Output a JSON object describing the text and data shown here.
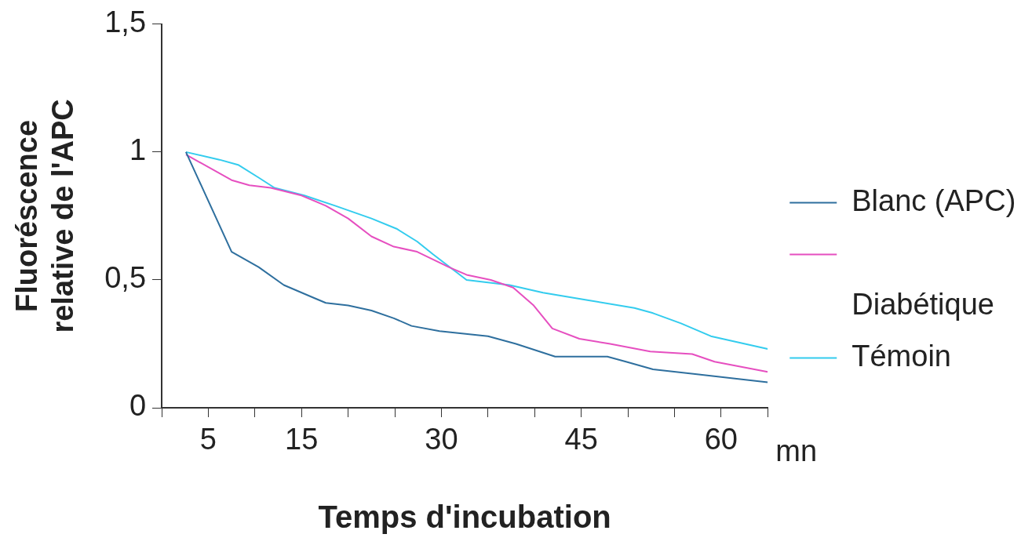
{
  "chart_data": {
    "type": "line",
    "xlabel": "Temps d'incubation",
    "ylabel": "Fluoréscence relative de l'APC",
    "annotations": [
      "Diabétique",
      "mn"
    ],
    "xlim": [
      0,
      65
    ],
    "xticks": [
      {
        "value": 0,
        "label": null
      },
      5,
      {
        "value": 10,
        "label": null
      },
      15,
      {
        "value": 20,
        "label": null
      },
      {
        "value": 25,
        "label": null
      },
      30,
      {
        "value": 35,
        "label": null
      },
      {
        "value": 40,
        "label": null
      },
      45,
      {
        "value": 50,
        "label": null
      },
      {
        "value": 55,
        "label": null
      },
      60,
      {
        "value": 65,
        "label": null
      }
    ],
    "ylim": [
      0,
      1.5
    ],
    "yticks": [
      0,
      {
        "value": 0.5,
        "label": "0,5"
      },
      1,
      {
        "value": 1.5,
        "label": "1,5"
      }
    ],
    "grid": false,
    "legend": "right",
    "marker": "none",
    "series": [
      {
        "name": "Blanc (APC)",
        "color": "#2e6f9e",
        "x": [
          2.6,
          7.5,
          10.4,
          13.1,
          16.3,
          17.6,
          20,
          22.5,
          24.9,
          26.8,
          29.8,
          32.4,
          35,
          38,
          42.2,
          47.8,
          49.8,
          52.7,
          57.6,
          65
        ],
        "values": [
          1.0,
          0.61,
          0.55,
          0.48,
          0.43,
          0.41,
          0.4,
          0.38,
          0.35,
          0.32,
          0.3,
          0.29,
          0.28,
          0.25,
          0.2,
          0.2,
          0.18,
          0.15,
          0.13,
          0.1
        ]
      },
      {
        "color": "#e64fc0",
        "x": [
          2.6,
          7.5,
          9.4,
          11.7,
          15,
          17.6,
          20,
          22.5,
          24.9,
          27.4,
          30.8,
          32.7,
          35.3,
          37.7,
          39.9,
          41.9,
          44.8,
          48.1,
          52.4,
          56.9,
          59.3,
          65
        ],
        "values": [
          0.99,
          0.89,
          0.87,
          0.86,
          0.83,
          0.79,
          0.74,
          0.67,
          0.63,
          0.61,
          0.55,
          0.52,
          0.5,
          0.47,
          0.4,
          0.31,
          0.27,
          0.25,
          0.22,
          0.21,
          0.18,
          0.14
        ]
      },
      {
        "name": "Témoin",
        "color": "#33ccee",
        "x": [
          2.6,
          6.2,
          8.2,
          10.4,
          12.1,
          15.3,
          18.6,
          22.5,
          25.2,
          27.4,
          29.1,
          32.7,
          37.3,
          40.9,
          45.8,
          50.7,
          52.7,
          55.7,
          58.9,
          65
        ],
        "values": [
          1.0,
          0.97,
          0.95,
          0.9,
          0.86,
          0.83,
          0.79,
          0.74,
          0.7,
          0.65,
          0.6,
          0.5,
          0.48,
          0.45,
          0.42,
          0.39,
          0.37,
          0.33,
          0.28,
          0.23
        ]
      }
    ]
  }
}
